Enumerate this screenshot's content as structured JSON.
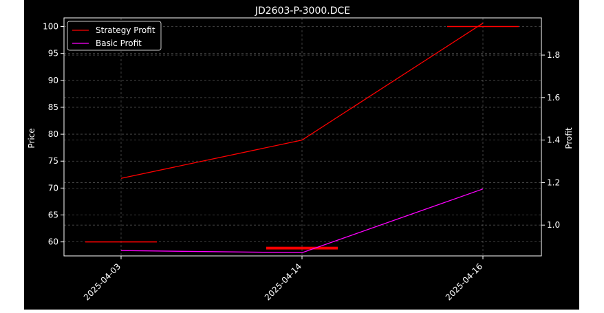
{
  "chart_data": {
    "type": "line",
    "title": "JD2603-P-3000.DCE",
    "xlabel": "",
    "ylabel": "Price",
    "y2label": "Profit",
    "categories": [
      "2025-04-03",
      "2025-04-14",
      "2025-04-16"
    ],
    "ylim": [
      57.4,
      101.6
    ],
    "yticks": [
      60,
      65,
      70,
      75,
      80,
      85,
      90,
      95,
      100
    ],
    "y2lim": [
      0.855,
      1.975
    ],
    "y2ticks": [
      1.0,
      1.2,
      1.4,
      1.6,
      1.8
    ],
    "grid": true,
    "legend_position": "upper left",
    "price_bars": [
      {
        "category": "2025-04-03",
        "low": 60.0,
        "high": 60.0
      },
      {
        "category": "2025-04-14",
        "low": 58.6,
        "high": 59.1
      },
      {
        "category": "2025-04-16",
        "low": 100.0,
        "high": 100.0
      }
    ],
    "series": [
      {
        "name": "Strategy Profit",
        "axis": "right",
        "color": "#ff0000",
        "values": [
          1.22,
          1.4,
          1.95
        ]
      },
      {
        "name": "Basic Profit",
        "axis": "right",
        "color": "#ff00ff",
        "values": [
          0.88,
          0.87,
          1.17
        ]
      }
    ]
  }
}
